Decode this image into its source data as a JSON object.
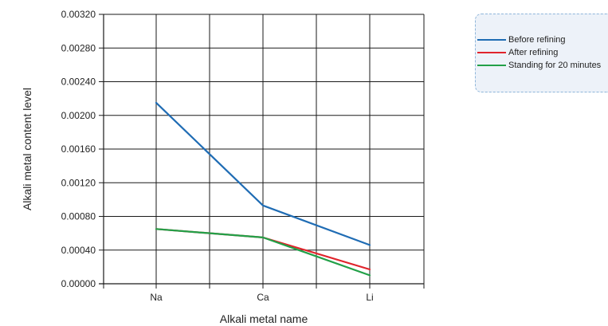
{
  "chart_data": {
    "type": "line",
    "title": "",
    "xlabel": "Alkali metal name",
    "ylabel": "Alkali metal content level",
    "categories": [
      "Na",
      "Ca",
      "Li"
    ],
    "ylim": [
      0.0,
      0.0032
    ],
    "yticks": [
      "0.00000",
      "0.00040",
      "0.00080",
      "0.00120",
      "0.00160",
      "0.00200",
      "0.00240",
      "0.00280",
      "0.00320"
    ],
    "grid": true,
    "legend_position": "top-right",
    "series": [
      {
        "name": "Before refining",
        "color": "#1f6cb4",
        "values": [
          0.00215,
          0.00093,
          0.00046
        ]
      },
      {
        "name": "After refining",
        "color": "#e0242c",
        "values": [
          0.00065,
          0.00055,
          0.00017
        ]
      },
      {
        "name": "Standing for 20 minutes",
        "color": "#22a048",
        "values": [
          0.00065,
          0.00055,
          0.0001
        ]
      }
    ]
  }
}
